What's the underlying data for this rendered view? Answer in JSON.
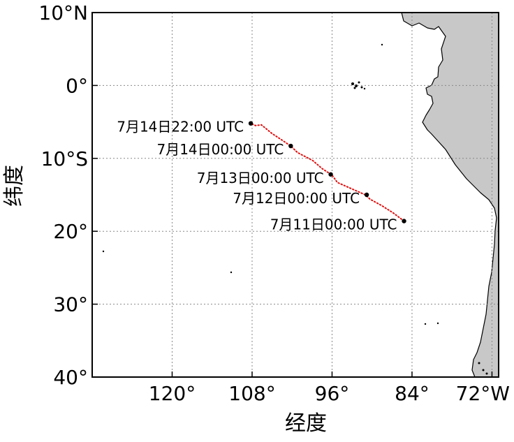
{
  "map": {
    "x_axis_label": "经度",
    "y_axis_label": "纬度",
    "lon_range": [
      -132,
      -71
    ],
    "lat_range": [
      -40,
      10
    ],
    "x_ticks": [
      {
        "lon": -120,
        "label": "120°"
      },
      {
        "lon": -108,
        "label": "108°"
      },
      {
        "lon": -96,
        "label": "96°"
      },
      {
        "lon": -84,
        "label": "84°"
      },
      {
        "lon": -72,
        "label": "72°W"
      }
    ],
    "y_ticks": [
      {
        "lat": 10,
        "label": "10°N"
      },
      {
        "lat": 0,
        "label": "0°"
      },
      {
        "lat": -10,
        "label": "10°S"
      },
      {
        "lat": -20,
        "label": "20°"
      },
      {
        "lat": -30,
        "label": "30°"
      },
      {
        "lat": -40,
        "label": "40°"
      }
    ],
    "grid": true,
    "colors": {
      "land": "#c8c8c8",
      "coast": "#000000",
      "track": "#e01010",
      "marker": "#000000",
      "grid": "#888888"
    },
    "track_points": [
      [
        -85.2,
        -18.6
      ],
      [
        -86.8,
        -17.5
      ],
      [
        -88.5,
        -16.5
      ],
      [
        -90.3,
        -15.6
      ],
      [
        -91.0,
        -15.0
      ],
      [
        -93.0,
        -14.2
      ],
      [
        -95.2,
        -13.3
      ],
      [
        -96.0,
        -12.3
      ],
      [
        -97.5,
        -11.4
      ],
      [
        -98.9,
        -10.3
      ],
      [
        -101.2,
        -9.2
      ],
      [
        -102.2,
        -8.3
      ],
      [
        -103.5,
        -7.5
      ],
      [
        -105.0,
        -6.6
      ],
      [
        -106.6,
        -5.4
      ],
      [
        -107.5,
        -5.5
      ],
      [
        -108.2,
        -5.2
      ]
    ],
    "markers": [
      {
        "lon": -108.2,
        "lat": -5.2,
        "label": "7月14日22:00 UTC",
        "anchor": "end"
      },
      {
        "lon": -102.2,
        "lat": -8.3,
        "label": "7月14日00:00 UTC",
        "anchor": "end"
      },
      {
        "lon": -96.2,
        "lat": -12.2,
        "label": "7月13日00:00 UTC",
        "anchor": "end"
      },
      {
        "lon": -90.8,
        "lat": -15.0,
        "label": "7月12日00:00 UTC",
        "anchor": "end"
      },
      {
        "lon": -85.2,
        "lat": -18.6,
        "label": "7月11日00:00 UTC",
        "anchor": "end"
      }
    ]
  }
}
